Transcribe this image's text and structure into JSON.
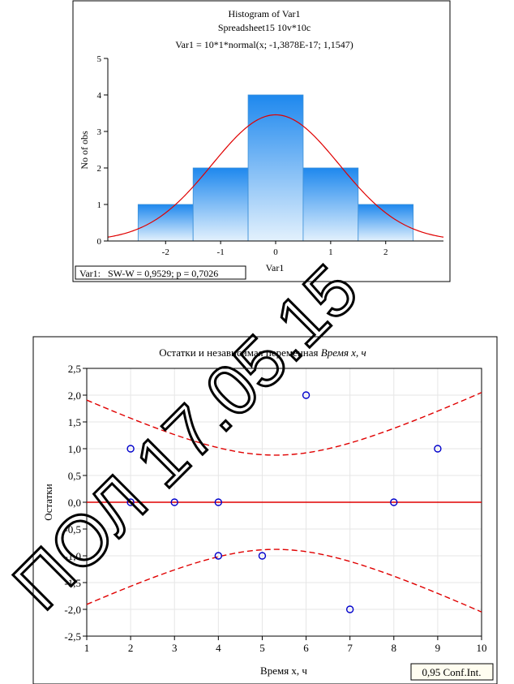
{
  "charts": [
    {
      "chart_data": {
        "type": "bar",
        "title_lines": [
          "Histogram of Var1",
          "Spreadsheet15 10v*10c",
          "Var1 = 10*1*normal(x; -1,3878E-17; 1,1547)"
        ],
        "xlabel": "Var1",
        "ylabel": "No of obs",
        "xlim": [
          -3.05,
          3.05
        ],
        "ylim": [
          0,
          5
        ],
        "x_ticks": [
          -2,
          -1,
          0,
          1,
          2
        ],
        "y_ticks": [
          0,
          1,
          2,
          3,
          4,
          5
        ],
        "bins": [
          {
            "from": -2.5,
            "to": -1.5,
            "count": 1
          },
          {
            "from": -1.5,
            "to": -0.5,
            "count": 2
          },
          {
            "from": -0.5,
            "to": 0.5,
            "count": 4
          },
          {
            "from": 0.5,
            "to": 1.5,
            "count": 2
          },
          {
            "from": 1.5,
            "to": 2.5,
            "count": 1
          }
        ],
        "curve": {
          "type": "normal",
          "n": 10,
          "bin_width": 1,
          "mean": 0,
          "sd": 1.1547
        },
        "annotation": "Var1:   SW-W = 0,9529; p = 0,7026",
        "colors": {
          "bar_top": "#1e88ee",
          "bar_bottom": "#e3f1fd",
          "bar_edge": "#3a8fd8",
          "curve": "#e00000"
        }
      }
    },
    {
      "chart_data": {
        "type": "scatter",
        "title": "Остатки и независимая переменная",
        "title_italic": "Время x, ч",
        "xlabel": "Время x, ч",
        "ylabel": "Остатки",
        "xlim": [
          1,
          10
        ],
        "ylim": [
          -2.5,
          2.5
        ],
        "x_ticks": [
          "1",
          "2",
          "3",
          "4",
          "5",
          "6",
          "7",
          "8",
          "9",
          "10"
        ],
        "y_ticks": [
          "2,5",
          "2,0",
          "1,5",
          "1,0",
          "0,5",
          "0,0",
          "-0,5",
          "-1,0",
          "-1,5",
          "-2,0",
          "-2,5"
        ],
        "grid": true,
        "points": [
          {
            "x": 2,
            "y": 1
          },
          {
            "x": 2,
            "y": 0
          },
          {
            "x": 3,
            "y": 0
          },
          {
            "x": 4,
            "y": 0
          },
          {
            "x": 4,
            "y": -1
          },
          {
            "x": 5,
            "y": -1
          },
          {
            "x": 6,
            "y": 2
          },
          {
            "x": 7,
            "y": -2
          },
          {
            "x": 8,
            "y": 0
          },
          {
            "x": 9,
            "y": 1
          }
        ],
        "fit_line": {
          "y": 0
        },
        "confidence_band": {
          "center_x": 5.3,
          "half_width_at_center": 0.88,
          "slope_factor": 0.155
        },
        "legend": "0,95 Conf.Int.",
        "colors": {
          "points": "#0000cc",
          "fit": "#e00000",
          "band": "#e00000",
          "grid": "#e6e6e6"
        }
      }
    }
  ],
  "watermark": {
    "text": "ПОЛ 17.05.15",
    "color": "#000000"
  }
}
